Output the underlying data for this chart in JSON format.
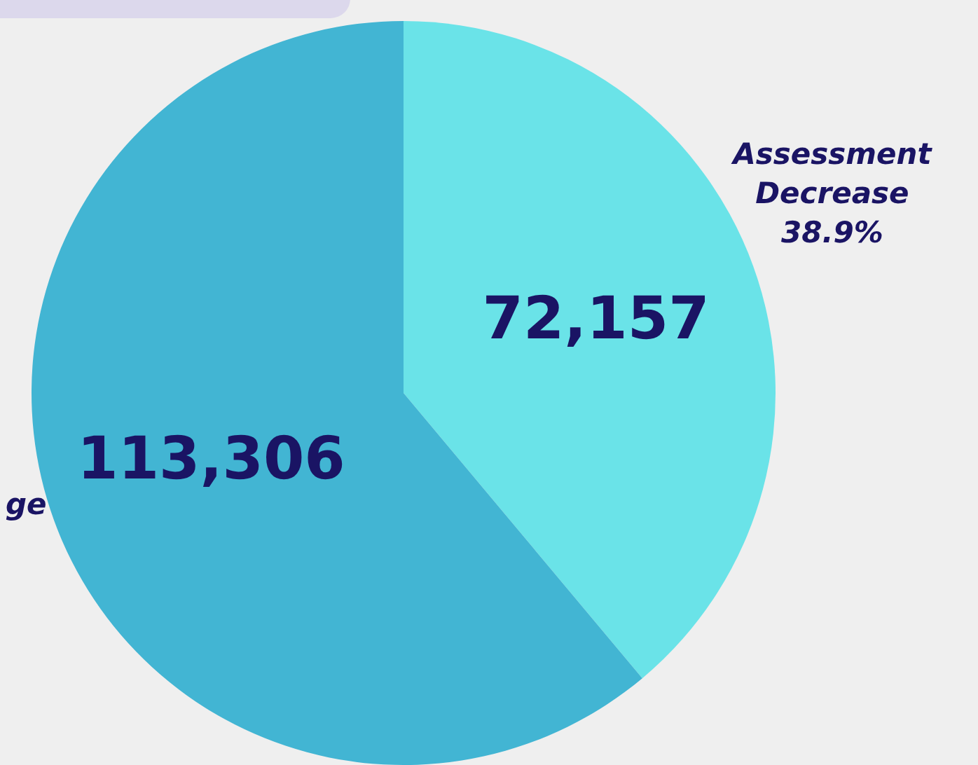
{
  "chart_data": {
    "type": "pie",
    "categories": [
      "Assessment Decrease",
      "ge"
    ],
    "values": [
      72157,
      113306
    ],
    "colors": [
      "#6ae3e8",
      "#42b5d3"
    ],
    "value_labels": [
      "72,157",
      "113,306"
    ],
    "annotations": [
      "38.9%"
    ],
    "legend": false
  }
}
